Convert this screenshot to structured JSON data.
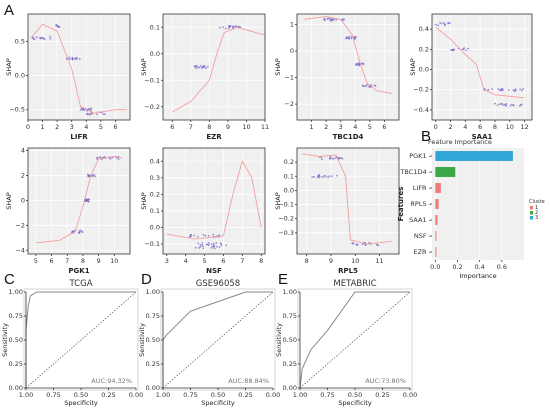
{
  "letters": {
    "a": "A",
    "b": "B",
    "c": "C",
    "d": "D",
    "e": "E"
  },
  "colors": {
    "point": "#7a66c8",
    "trend": "#f2a0a0",
    "cluster1": "#f07a7a",
    "cluster2": "#3aa845",
    "cluster3": "#30a6d8",
    "roc": "#888888"
  },
  "chart_data": [
    {
      "id": "lifr",
      "type": "scatter",
      "xlabel": "LIFR",
      "ylabel": "SHAP",
      "xlim": [
        0,
        7
      ],
      "ylim": [
        -0.65,
        0.9
      ],
      "xticks": [
        0,
        1,
        2,
        3,
        4,
        5,
        6
      ],
      "yticks": [
        {
          "v": 0.5,
          "t": "0.5"
        },
        {
          "v": 0.0,
          "t": "0.0"
        },
        {
          "v": -0.5,
          "t": "−0.5"
        }
      ],
      "clusters": [
        {
          "x0": 0.2,
          "x1": 1.6,
          "y": 0.55,
          "n": 14
        },
        {
          "x0": 1.9,
          "x1": 2.3,
          "y": 0.72,
          "n": 8
        },
        {
          "x0": 2.6,
          "x1": 3.6,
          "y": 0.25,
          "n": 14
        },
        {
          "x0": 3.6,
          "x1": 4.4,
          "y": -0.5,
          "n": 16
        },
        {
          "x0": 4.0,
          "x1": 5.5,
          "y": -0.55,
          "n": 14
        }
      ],
      "trend": [
        [
          0.2,
          0.55
        ],
        [
          1.0,
          0.75
        ],
        [
          2.0,
          0.65
        ],
        [
          3.0,
          0.1
        ],
        [
          3.6,
          -0.45
        ],
        [
          4.5,
          -0.55
        ],
        [
          6.0,
          -0.5
        ],
        [
          6.8,
          -0.5
        ]
      ]
    },
    {
      "id": "ezr",
      "type": "scatter",
      "xlabel": "EZR",
      "ylabel": "SHAP",
      "xlim": [
        5.5,
        11
      ],
      "ylim": [
        -0.25,
        0.15
      ],
      "xticks": [
        6,
        7,
        8,
        9,
        10,
        11
      ],
      "yticks": [
        {
          "v": 0.1,
          "t": "0.1"
        },
        {
          "v": 0.0,
          "t": "0.0"
        },
        {
          "v": -0.1,
          "t": "−0.1"
        },
        {
          "v": -0.2,
          "t": "−0.2"
        }
      ],
      "clusters": [
        {
          "x0": 7.2,
          "x1": 8.2,
          "y": -0.05,
          "n": 16
        },
        {
          "x0": 8.5,
          "x1": 9.7,
          "y": 0.1,
          "n": 20
        }
      ],
      "trend": [
        [
          6.0,
          -0.22
        ],
        [
          7.0,
          -0.18
        ],
        [
          8.0,
          -0.1
        ],
        [
          8.4,
          0.0
        ],
        [
          8.8,
          0.08
        ],
        [
          9.5,
          0.1
        ],
        [
          10.5,
          0.08
        ],
        [
          11.0,
          0.07
        ]
      ]
    },
    {
      "id": "tbc1d4",
      "type": "scatter",
      "xlabel": "TBC1D4",
      "ylabel": "SHAP",
      "xlim": [
        0,
        7
      ],
      "ylim": [
        -2.6,
        1.4
      ],
      "xticks": [
        1,
        2,
        3,
        4,
        5,
        6
      ],
      "yticks": [
        {
          "v": 1,
          "t": "1"
        },
        {
          "v": 0,
          "t": "0"
        },
        {
          "v": -1,
          "t": "−1"
        },
        {
          "v": -2,
          "t": "−2"
        }
      ],
      "clusters": [
        {
          "x0": 1.8,
          "x1": 3.3,
          "y": 1.2,
          "n": 18
        },
        {
          "x0": 3.3,
          "x1": 4.1,
          "y": 0.5,
          "n": 16
        },
        {
          "x0": 4.0,
          "x1": 4.6,
          "y": -0.5,
          "n": 14
        },
        {
          "x0": 4.5,
          "x1": 5.5,
          "y": -1.3,
          "n": 16
        }
      ],
      "trend": [
        [
          0.5,
          1.2
        ],
        [
          2.0,
          1.3
        ],
        [
          3.0,
          1.2
        ],
        [
          3.8,
          0.6
        ],
        [
          4.3,
          -0.4
        ],
        [
          4.8,
          -1.2
        ],
        [
          5.5,
          -1.5
        ],
        [
          6.5,
          -1.6
        ]
      ]
    },
    {
      "id": "saa1",
      "type": "scatter",
      "xlabel": "SAA1",
      "ylabel": "SHAP",
      "xlim": [
        -0.5,
        13
      ],
      "ylim": [
        -0.5,
        0.55
      ],
      "xticks": [
        0,
        2,
        4,
        6,
        8,
        10,
        12
      ],
      "yticks": [
        {
          "v": 0.4,
          "t": "0.4"
        },
        {
          "v": 0.2,
          "t": "0.2"
        },
        {
          "v": 0.0,
          "t": "0.0"
        },
        {
          "v": -0.2,
          "t": "−0.2"
        },
        {
          "v": -0.4,
          "t": "−0.4"
        }
      ],
      "clusters": [
        {
          "x0": 0.0,
          "x1": 2.0,
          "y": 0.45,
          "n": 10
        },
        {
          "x0": 2.0,
          "x1": 5.5,
          "y": 0.2,
          "n": 14
        },
        {
          "x0": 6.5,
          "x1": 12.0,
          "y": -0.2,
          "n": 22
        },
        {
          "x0": 8.0,
          "x1": 12.0,
          "y": -0.35,
          "n": 16
        }
      ],
      "trend": [
        [
          0.0,
          0.42
        ],
        [
          2.0,
          0.3
        ],
        [
          4.0,
          0.15
        ],
        [
          5.5,
          0.05
        ],
        [
          6.5,
          -0.2
        ],
        [
          8.0,
          -0.25
        ],
        [
          12.0,
          -0.28
        ]
      ]
    },
    {
      "id": "pgk1",
      "type": "scatter",
      "xlabel": "PGK1",
      "ylabel": "SHAP",
      "xlim": [
        4.5,
        11
      ],
      "ylim": [
        -4.3,
        4.2
      ],
      "xticks": [
        5,
        6,
        7,
        8,
        9,
        10
      ],
      "yticks": [
        {
          "v": 4,
          "t": "4"
        },
        {
          "v": 2,
          "t": "2"
        },
        {
          "v": 0,
          "t": "0"
        },
        {
          "v": -2,
          "t": "−2"
        },
        {
          "v": -4,
          "t": "−4"
        }
      ],
      "clusters": [
        {
          "x0": 7.3,
          "x1": 8.0,
          "y": -2.5,
          "n": 16
        },
        {
          "x0": 8.0,
          "x1": 8.4,
          "y": 0.0,
          "n": 16
        },
        {
          "x0": 8.3,
          "x1": 8.8,
          "y": 2.0,
          "n": 14
        },
        {
          "x0": 8.8,
          "x1": 10.3,
          "y": 3.4,
          "n": 20
        }
      ],
      "trend": [
        [
          5.0,
          -3.4
        ],
        [
          6.5,
          -3.2
        ],
        [
          7.5,
          -2.5
        ],
        [
          8.0,
          -0.5
        ],
        [
          8.5,
          2.0
        ],
        [
          9.0,
          3.3
        ],
        [
          10.0,
          3.5
        ],
        [
          10.5,
          3.4
        ]
      ]
    },
    {
      "id": "nsf",
      "type": "scatter",
      "xlabel": "NSF",
      "ylabel": "SHAP",
      "xlim": [
        2.8,
        8.2
      ],
      "ylim": [
        -0.16,
        0.48
      ],
      "xticks": [
        3,
        4,
        5,
        6,
        7,
        8
      ],
      "yticks": [
        {
          "v": 0.4,
          "t": "0.4"
        },
        {
          "v": 0.3,
          "t": "0.3"
        },
        {
          "v": 0.2,
          "t": "0.2"
        },
        {
          "v": 0.1,
          "t": "0.1"
        },
        {
          "v": 0.0,
          "t": "0.0"
        },
        {
          "v": -0.1,
          "t": "−0.1"
        }
      ],
      "clusters": [
        {
          "x0": 4.0,
          "x1": 6.2,
          "y": -0.05,
          "n": 18
        },
        {
          "x0": 4.5,
          "x1": 6.2,
          "y": -0.1,
          "n": 16
        },
        {
          "x0": 4.5,
          "x1": 6.0,
          "y": -0.12,
          "n": 12
        }
      ],
      "trend": [
        [
          3.0,
          -0.04
        ],
        [
          4.5,
          -0.07
        ],
        [
          6.0,
          -0.05
        ],
        [
          6.5,
          0.2
        ],
        [
          7.0,
          0.4
        ],
        [
          7.5,
          0.3
        ],
        [
          8.0,
          0.0
        ]
      ]
    },
    {
      "id": "rpl5",
      "type": "scatter",
      "xlabel": "RPL5",
      "ylabel": "SHAP",
      "xlim": [
        7.6,
        11.8
      ],
      "ylim": [
        -0.45,
        0.3
      ],
      "xticks": [
        8,
        9,
        10,
        11
      ],
      "yticks": [
        {
          "v": 0.2,
          "t": "0.2"
        },
        {
          "v": 0.1,
          "t": "0.1"
        },
        {
          "v": 0.0,
          "t": "0.0"
        },
        {
          "v": -0.1,
          "t": "−0.1"
        },
        {
          "v": -0.2,
          "t": "−0.2"
        },
        {
          "v": -0.3,
          "t": "−0.3"
        }
      ],
      "clusters": [
        {
          "x0": 8.5,
          "x1": 9.5,
          "y": 0.23,
          "n": 18
        },
        {
          "x0": 8.2,
          "x1": 9.3,
          "y": 0.1,
          "n": 16
        },
        {
          "x0": 9.8,
          "x1": 11.0,
          "y": -0.38,
          "n": 18
        }
      ],
      "trend": [
        [
          7.8,
          0.26
        ],
        [
          8.5,
          0.24
        ],
        [
          9.2,
          0.25
        ],
        [
          9.6,
          0.1
        ],
        [
          9.8,
          -0.35
        ],
        [
          10.5,
          -0.38
        ],
        [
          11.5,
          -0.36
        ]
      ]
    },
    {
      "id": "importance",
      "type": "bar",
      "title": "Feature Importance",
      "xlabel": "Importance",
      "ylabel": "Features",
      "xlim": [
        -0.03,
        0.8
      ],
      "xticks": [
        0.0,
        0.2,
        0.4,
        0.6
      ],
      "categories": [
        "PGK1",
        "TBC1D4",
        "LIFR",
        "RPL5",
        "SAA1",
        "NSF",
        "EZR"
      ],
      "values": [
        0.7,
        0.18,
        0.05,
        0.03,
        0.02,
        0.01,
        0.01
      ],
      "cluster": [
        3,
        2,
        1,
        1,
        1,
        1,
        1
      ],
      "legend_title": "Cluste",
      "legend": [
        "1",
        "2",
        "3"
      ]
    },
    {
      "id": "tcga",
      "type": "line",
      "title": "TCGA",
      "xlabel": "Specificity",
      "ylabel": "Sensitivity",
      "xlim": [
        1.0,
        0.0
      ],
      "ylim": [
        0.0,
        1.0
      ],
      "xticks": [
        1.0,
        0.75,
        0.5,
        0.25,
        0.0
      ],
      "yticks": [
        0.0,
        0.25,
        0.5,
        0.75,
        1.0
      ],
      "annotation": "AUC:94.32%",
      "specificity": [
        1.0,
        1.0,
        0.98,
        0.96,
        0.9,
        0.8,
        0.0
      ],
      "sensitivity": [
        0.0,
        0.6,
        0.85,
        0.96,
        1.0,
        1.0,
        1.0
      ]
    },
    {
      "id": "gse96058",
      "type": "line",
      "title": "GSE96058",
      "xlabel": "Specificity",
      "ylabel": "Sensitivity",
      "xlim": [
        1.0,
        0.0
      ],
      "ylim": [
        0.0,
        1.0
      ],
      "xticks": [
        1.0,
        0.75,
        0.5,
        0.25,
        0.0
      ],
      "yticks": [
        0.0,
        0.25,
        0.5,
        0.75,
        1.0
      ],
      "annotation": "AUC:88.84%",
      "specificity": [
        1.0,
        1.0,
        0.97,
        0.75,
        0.5,
        0.25,
        0.0
      ],
      "sensitivity": [
        0.0,
        0.5,
        0.55,
        0.8,
        0.9,
        1.0,
        1.0
      ]
    },
    {
      "id": "metabric",
      "type": "line",
      "title": "METABRIC",
      "xlabel": "Specificity",
      "ylabel": "Sensitivity",
      "xlim": [
        1.0,
        0.0
      ],
      "ylim": [
        0.0,
        1.0
      ],
      "xticks": [
        1.0,
        0.75,
        0.5,
        0.25,
        0.0
      ],
      "yticks": [
        0.0,
        0.25,
        0.5,
        0.75,
        1.0
      ],
      "annotation": "AUC:73.80%",
      "specificity": [
        1.0,
        0.98,
        0.9,
        0.75,
        0.5,
        0.45,
        0.0
      ],
      "sensitivity": [
        0.0,
        0.2,
        0.4,
        0.6,
        1.0,
        1.0,
        1.0
      ]
    }
  ]
}
